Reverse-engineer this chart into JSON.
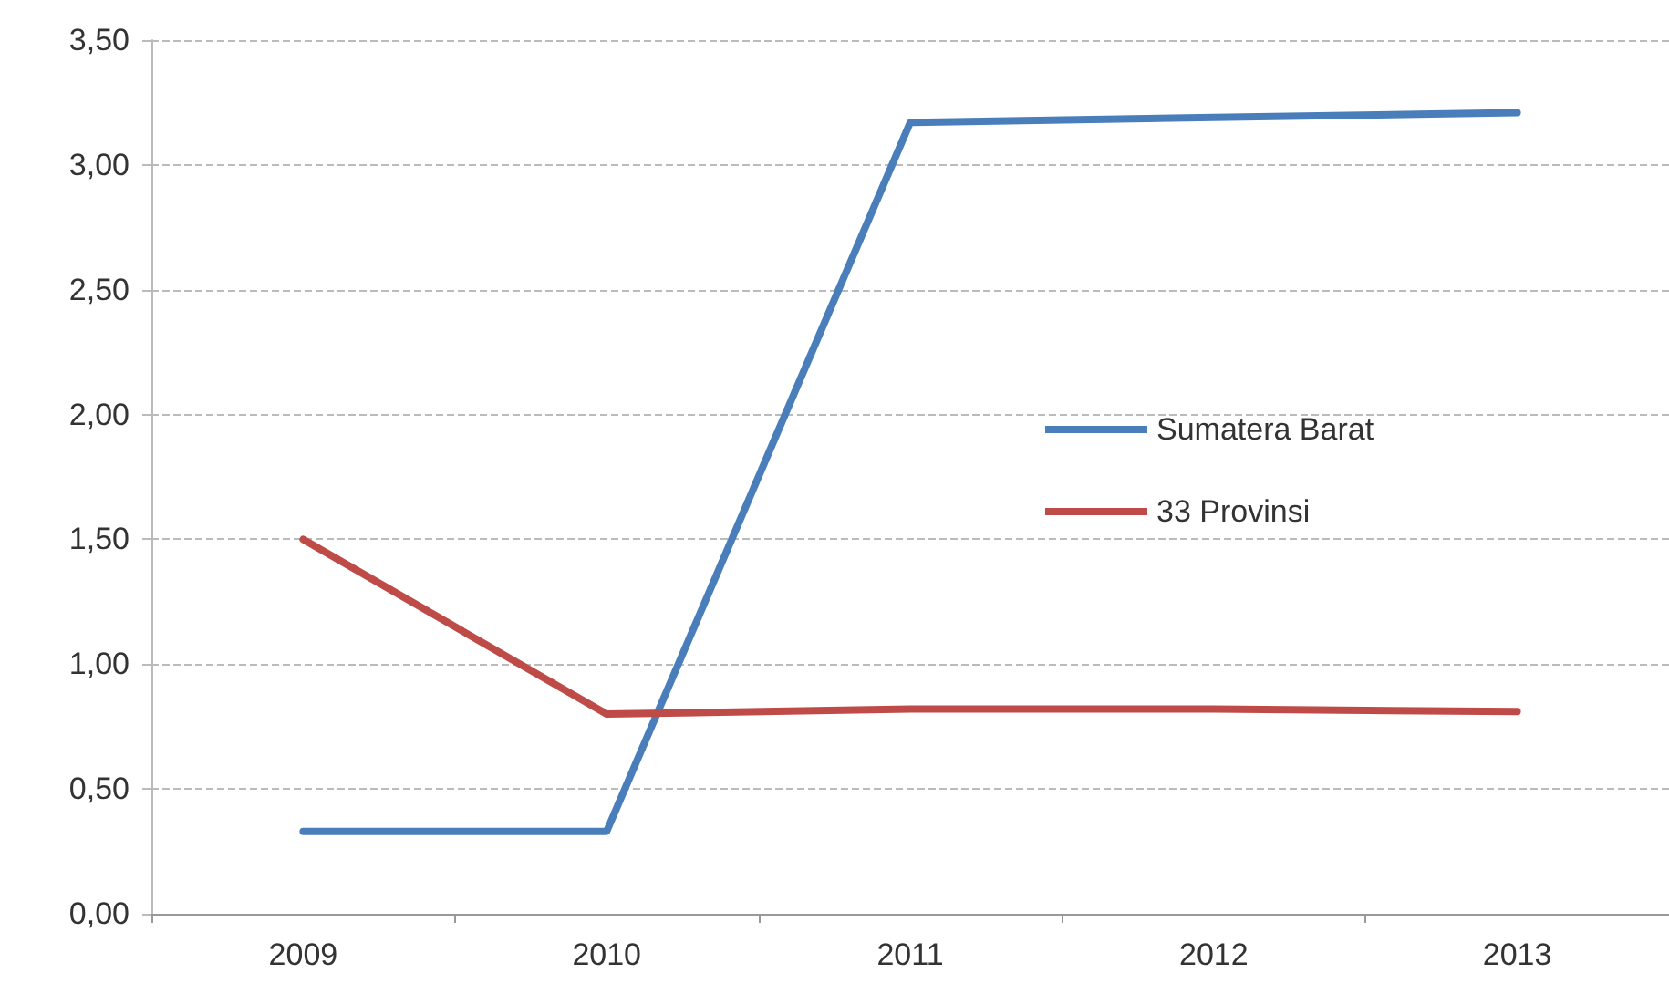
{
  "chart_data": {
    "type": "line",
    "categories": [
      "2009",
      "2010",
      "2011",
      "2012",
      "2013"
    ],
    "series": [
      {
        "name": "Sumatera Barat",
        "color": "#4a7ebb",
        "values": [
          0.33,
          0.33,
          3.17,
          3.19,
          3.21
        ]
      },
      {
        "name": "33 Provinsi",
        "color": "#be4b48",
        "values": [
          1.5,
          0.8,
          0.82,
          0.82,
          0.81
        ]
      }
    ],
    "ylim": [
      0,
      3.5
    ],
    "yticks": [
      {
        "value": 0,
        "label": "0,00"
      },
      {
        "value": 0.5,
        "label": "0,50"
      },
      {
        "value": 1,
        "label": "1,00"
      },
      {
        "value": 1.5,
        "label": "1,50"
      },
      {
        "value": 2,
        "label": "2,00"
      },
      {
        "value": 2.5,
        "label": "2,50"
      },
      {
        "value": 3,
        "label": "3,00"
      },
      {
        "value": 3.5,
        "label": "3,50"
      }
    ],
    "grid": "y",
    "legend": "right",
    "marker": "none",
    "line_style": "solid"
  }
}
